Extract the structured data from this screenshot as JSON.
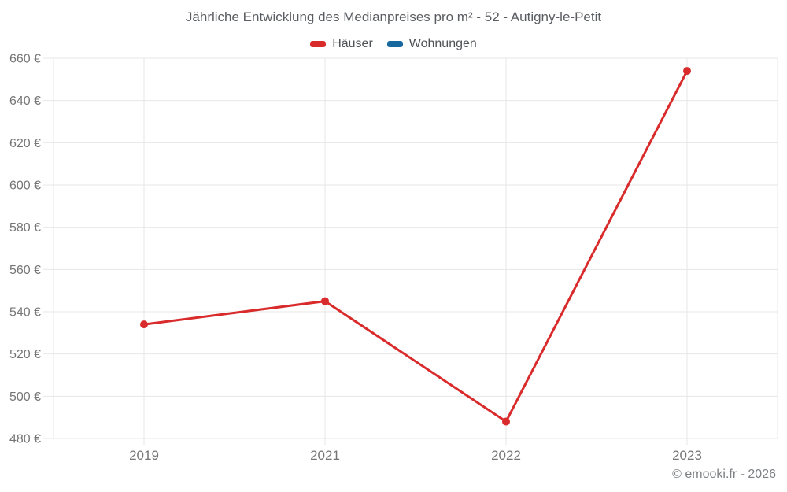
{
  "title": "Jährliche Entwicklung des Medianpreises pro m² - 52 - Autigny-le-Petit",
  "legend": [
    {
      "label": "Häuser",
      "color": "#d92b2b"
    },
    {
      "label": "Wohnungen",
      "color": "#16689e"
    }
  ],
  "footer": {
    "copyright": "© emooki.fr - 2026"
  },
  "colors": {
    "grid": "#e7e7e7",
    "axis_text": "#757575",
    "haeuser": "#d92b2b",
    "wohnungen": "#16689e"
  },
  "chart_data": {
    "type": "line",
    "title": "Jährliche Entwicklung des Medianpreises pro m² - 52 - Autigny-le-Petit",
    "categories": [
      "2019",
      "2021",
      "2022",
      "2023"
    ],
    "series": [
      {
        "name": "Häuser",
        "color": "#d92b2b",
        "values": [
          534,
          545,
          488,
          654
        ]
      },
      {
        "name": "Wohnungen",
        "color": "#16689e",
        "values": []
      }
    ],
    "xlabel": "",
    "ylabel": "",
    "ylim": [
      480,
      660
    ],
    "y_tick_step": 20,
    "y_tick_suffix": " €",
    "y_tick_labels": [
      "480 €",
      "500 €",
      "520 €",
      "540 €",
      "560 €",
      "580 €",
      "600 €",
      "620 €",
      "640 €",
      "660 €"
    ],
    "grid": true,
    "legend_position": "top",
    "marker": "circle"
  }
}
